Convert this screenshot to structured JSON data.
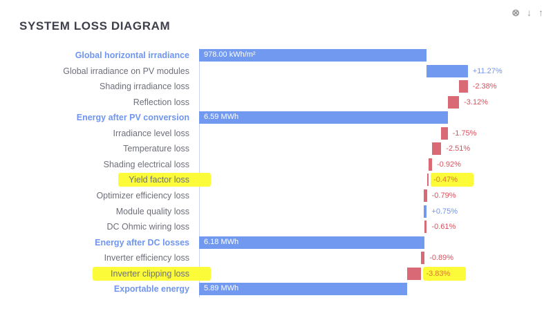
{
  "title": "SYSTEM LOSS DIAGRAM",
  "icons": [
    "close-circle-icon",
    "arrow-down-icon",
    "arrow-up-icon"
  ],
  "colors": {
    "total": "#7299f0",
    "gain": "#7299f0",
    "loss": "#d96a75",
    "highlight": "#fbfb3a"
  },
  "chart_data": {
    "type": "bar",
    "subtype": "waterfall",
    "orientation": "horizontal",
    "rows": [
      {
        "label": "Global horizontal irradiance",
        "kind": "total",
        "value_label": "978.00 kWh/m²"
      },
      {
        "label": "Global irradiance on PV modules",
        "kind": "delta",
        "value": 11.27,
        "value_label": "+11.27%"
      },
      {
        "label": "Shading irradiance loss",
        "kind": "delta",
        "value": -2.38,
        "value_label": "-2.38%"
      },
      {
        "label": "Reflection loss",
        "kind": "delta",
        "value": -3.12,
        "value_label": "-3.12%"
      },
      {
        "label": "Energy after PV conversion",
        "kind": "total",
        "value_label": "6.59 MWh"
      },
      {
        "label": "Irradiance level loss",
        "kind": "delta",
        "value": -1.75,
        "value_label": "-1.75%"
      },
      {
        "label": "Temperature loss",
        "kind": "delta",
        "value": -2.51,
        "value_label": "-2.51%"
      },
      {
        "label": "Shading electrical loss",
        "kind": "delta",
        "value": -0.92,
        "value_label": "-0.92%"
      },
      {
        "label": "Yield factor loss",
        "kind": "delta",
        "value": -0.47,
        "value_label": "-0.47%",
        "highlighted": true
      },
      {
        "label": "Optimizer efficiency loss",
        "kind": "delta",
        "value": -0.79,
        "value_label": "-0.79%"
      },
      {
        "label": "Module quality loss",
        "kind": "delta",
        "value": 0.75,
        "value_label": "+0.75%"
      },
      {
        "label": "DC Ohmic wiring loss",
        "kind": "delta",
        "value": -0.61,
        "value_label": "-0.61%"
      },
      {
        "label": "Energy after DC losses",
        "kind": "total",
        "value_label": "6.18 MWh"
      },
      {
        "label": "Inverter efficiency loss",
        "kind": "delta",
        "value": -0.89,
        "value_label": "-0.89%"
      },
      {
        "label": "Inverter clipping loss",
        "kind": "delta",
        "value": -3.83,
        "value_label": "-3.83%",
        "highlighted": true
      },
      {
        "label": "Exportable energy",
        "kind": "total",
        "value_label": "5.89 MWh"
      }
    ]
  }
}
